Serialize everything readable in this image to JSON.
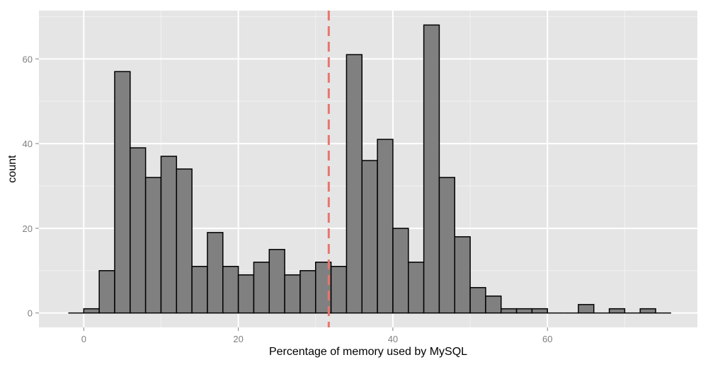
{
  "chart_data": {
    "type": "bar",
    "subtype": "histogram",
    "xlabel": "Percentage of memory used by MySQL",
    "ylabel": "count",
    "xlim": [
      -5.8,
      79.4
    ],
    "ylim": [
      -3.4,
      71.4
    ],
    "x_ticks": [
      0,
      20,
      40,
      60
    ],
    "y_ticks": [
      0,
      20,
      40,
      60
    ],
    "bin_width": 2,
    "bin_start": -2,
    "counts": [
      0,
      1,
      10,
      57,
      39,
      32,
      37,
      34,
      11,
      19,
      11,
      9,
      12,
      15,
      9,
      10,
      12,
      11,
      61,
      36,
      41,
      20,
      12,
      68,
      32,
      18,
      6,
      4,
      1,
      1,
      1,
      0,
      0,
      2,
      0,
      1,
      0,
      1,
      0
    ],
    "reference_line": {
      "x": 31.7,
      "style": "dashed",
      "color": "#e8756f"
    },
    "grid": true,
    "colors": {
      "panel_background": "#e5e5e5",
      "grid_major": "#ffffff",
      "grid_minor": "#f2f2f2",
      "bar_fill": "#808080",
      "bar_outline": "#000000"
    }
  }
}
